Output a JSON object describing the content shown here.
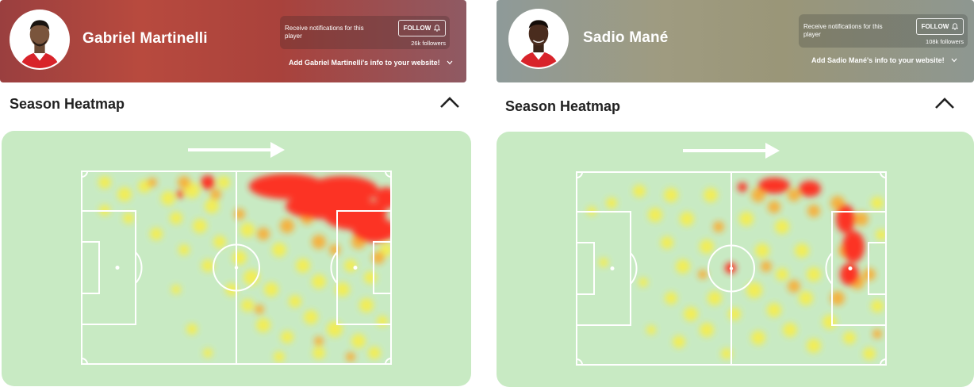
{
  "players": [
    {
      "name": "Gabriel Martinelli",
      "notify_text": "Receive notifications for this player",
      "follow_label": "FOLLOW",
      "followers": "26k followers",
      "add_info": "Add Gabriel Martinelli's info to your website!",
      "section_title": "Season Heatmap",
      "icons": [
        "avatar",
        "bell-icon",
        "chevron-down-icon",
        "chevron-up-icon",
        "arrow-right-icon"
      ],
      "colors": {
        "header": "#a9443d",
        "pitch": "#c8eac3",
        "heat_high": "#ff2a1f",
        "heat_mid": "#ffa51e",
        "heat_low": "#ffee32"
      }
    },
    {
      "name": "Sadio Mané",
      "notify_text": "Receive notifications for this player",
      "follow_label": "FOLLOW",
      "followers": "108k followers",
      "add_info": "Add Sadio Mané's info to your website!",
      "section_title": "Season Heatmap",
      "icons": [
        "avatar",
        "bell-icon",
        "chevron-down-icon",
        "chevron-up-icon",
        "arrow-right-icon"
      ],
      "colors": {
        "header": "#9b9a82",
        "pitch": "#c8eac3",
        "heat_high": "#ff2a1f",
        "heat_mid": "#ffa51e",
        "heat_low": "#ffee32"
      }
    }
  ]
}
